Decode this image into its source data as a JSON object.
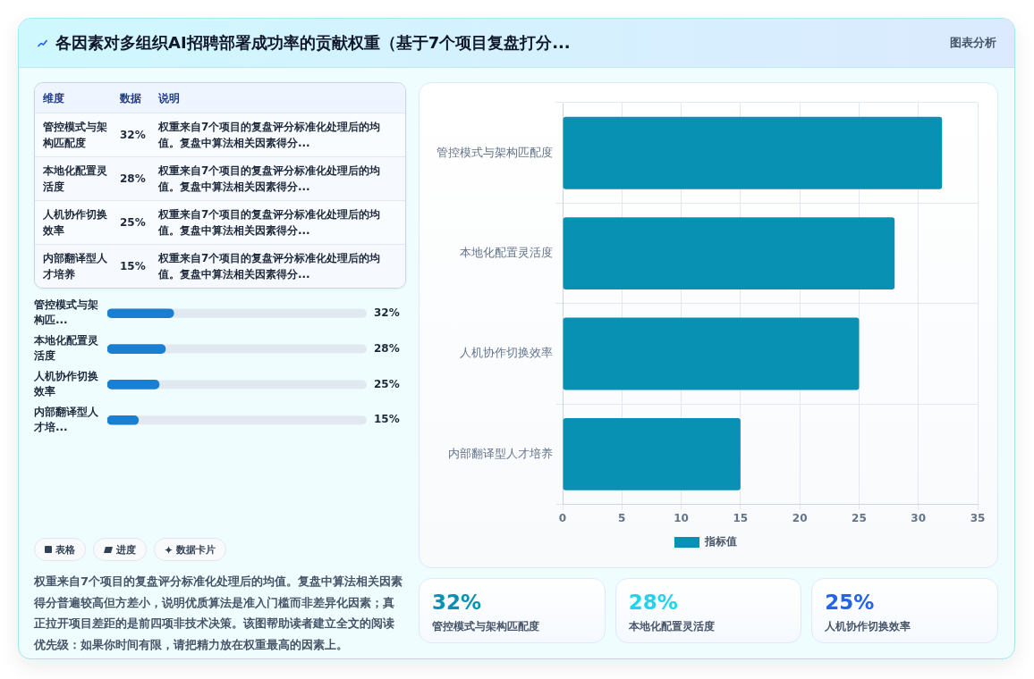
{
  "chart_data": [
    {
      "type": "other",
      "title": "各因素对多组织AI招聘部署成功率的贡献权重（基于7个项目复盘打分...",
      "annotations": [
        "图表分析"
      ]
    },
    {
      "type": "other",
      "annotations": [
        "维度",
        "数据",
        "说明",
        "管控模式与架构匹配度",
        "32%",
        "权重来自7个项目的复盘评分标准化处理后的均值。复盘中算法相关因素得分...",
        "本地化配置灵活度",
        "28%",
        "权重来自7个项目的复盘评分标准化处理后的均值。复盘中算法相关因素得分...",
        "人机协作切换效率",
        "25%",
        "权重来自7个项目的复盘评分标准化处理后的均值。复盘中算法相关因素得分...",
        "内部翻译型人才培养",
        "15%",
        "权重来自7个项目的复盘评分标准化处理后的均值。复盘中算法相关因素得分..."
      ]
    },
    {
      "type": "bar",
      "orientation": "horizontal",
      "categories": [
        "管控模式与架构匹...",
        "本地化配置灵活度",
        "人机协作切换效率",
        "内部翻译型人才培..."
      ],
      "values": [
        32,
        28,
        25,
        15
      ],
      "value_labels": [
        "32%",
        "28%",
        "25%",
        "15%"
      ],
      "color": "#1a7fd0",
      "xlim": [
        0,
        125
      ],
      "tick_labels": "y"
    },
    {
      "type": "other",
      "annotations": [
        "表格",
        "进度",
        "数据卡片",
        "权重来自7个项目的复盘评分标准化处理后的均值。复盘中算法相关因素得分普遍较高但方差小，说明优质算法是准入门槛而非差异化因素；真正拉开项目差距的是前四项非技术决策。该图帮助读者建立全文的阅读优先级：如果你时间有限，请把精力放在权重最高的因素上。"
      ]
    },
    {
      "type": "bar",
      "orientation": "horizontal",
      "categories": [
        "管控模式与架构匹配度",
        "本地化配置灵活度",
        "人机协作切换效率",
        "内部翻译型人才培养"
      ],
      "series": [
        {
          "name": "指标值",
          "color": "#0891b2",
          "values": [
            32,
            28,
            25,
            15
          ]
        }
      ],
      "xlim": [
        0,
        35
      ],
      "xticks": [
        0,
        5,
        10,
        15,
        20,
        25,
        30,
        35
      ],
      "grid": true,
      "legend": "bottom"
    },
    {
      "type": "other",
      "annotations": [
        "32%",
        "管控模式与架构匹配度",
        "28%",
        "本地化配置灵活度",
        "25%",
        "人机协作切换效率"
      ]
    }
  ]
}
